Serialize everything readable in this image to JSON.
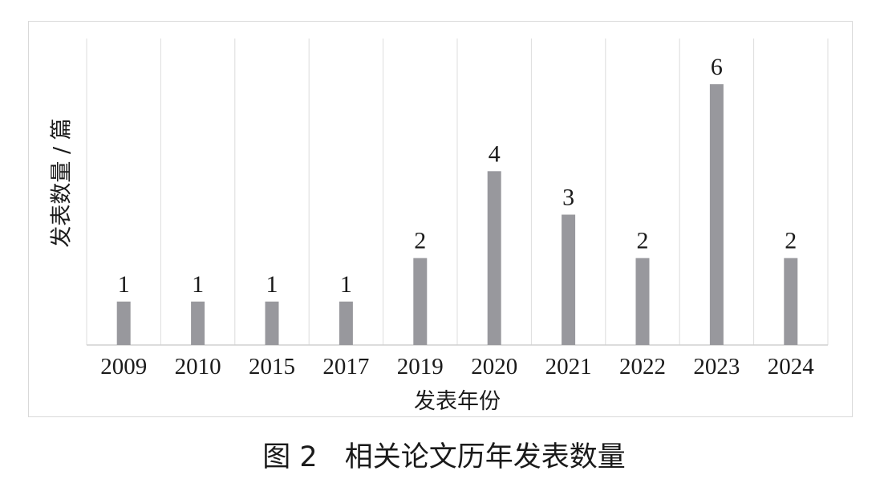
{
  "chart_data": {
    "type": "bar",
    "title": "",
    "xlabel": "发表年份",
    "ylabel": "发表数量 / 篇",
    "categories": [
      "2009",
      "2010",
      "2015",
      "2017",
      "2019",
      "2020",
      "2021",
      "2022",
      "2023",
      "2024"
    ],
    "values": [
      1,
      1,
      1,
      1,
      2,
      4,
      3,
      2,
      6,
      2
    ],
    "ylim": [
      0,
      6
    ],
    "grid": "vertical separators",
    "legend": "none",
    "bar_color": "#98989d",
    "data_labels": true
  },
  "caption": {
    "number": "图 2",
    "text": "相关论文历年发表数量"
  }
}
